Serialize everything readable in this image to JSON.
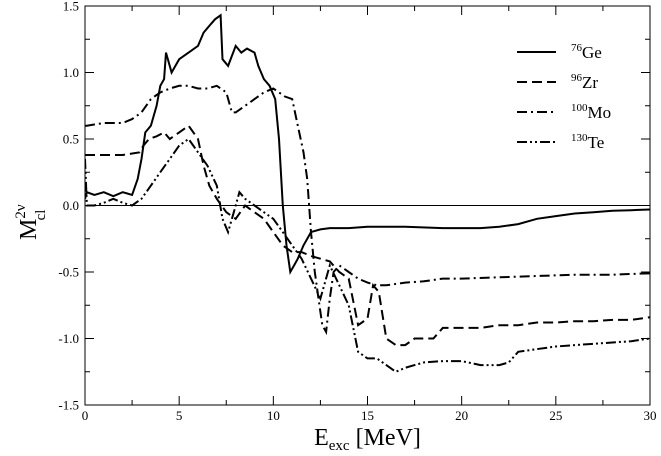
{
  "chart_data": {
    "type": "line",
    "xlabel": "E",
    "xlabel_sub": "exc",
    "xlabel_unit": " [MeV]",
    "ylabel": "M",
    "ylabel_sup": "2ν",
    "ylabel_sub": "cl",
    "xlim": [
      0,
      30
    ],
    "ylim": [
      -1.5,
      1.5
    ],
    "x_ticks": [
      0,
      5,
      10,
      15,
      20,
      25,
      30
    ],
    "y_ticks": [
      -1.5,
      -1.0,
      -0.5,
      0.0,
      0.5,
      1.0,
      1.5
    ],
    "x_tick_labels": [
      "0",
      "5",
      "10",
      "15",
      "20",
      "25",
      "30"
    ],
    "y_tick_labels": [
      "-1.5",
      "-1.0",
      "-0.5",
      "0.0",
      "0.5",
      "1.0",
      "1.5"
    ],
    "zero_line": true,
    "grid": false,
    "legend_position": "top-right",
    "series": [
      {
        "name": "Ge",
        "name_sup": "76",
        "style": "solid",
        "color": "#000000",
        "points": [
          [
            0,
            0.05
          ],
          [
            0.1,
            0.1
          ],
          [
            0.5,
            0.08
          ],
          [
            1.0,
            0.1
          ],
          [
            1.5,
            0.07
          ],
          [
            2.0,
            0.1
          ],
          [
            2.5,
            0.08
          ],
          [
            2.8,
            0.2
          ],
          [
            3.0,
            0.35
          ],
          [
            3.2,
            0.55
          ],
          [
            3.5,
            0.6
          ],
          [
            3.8,
            0.75
          ],
          [
            4.0,
            0.9
          ],
          [
            4.2,
            0.95
          ],
          [
            4.3,
            1.15
          ],
          [
            4.6,
            1.0
          ],
          [
            5.0,
            1.1
          ],
          [
            5.5,
            1.15
          ],
          [
            6.0,
            1.2
          ],
          [
            6.3,
            1.3
          ],
          [
            6.6,
            1.35
          ],
          [
            6.9,
            1.4
          ],
          [
            7.2,
            1.43
          ],
          [
            7.3,
            1.1
          ],
          [
            7.6,
            1.05
          ],
          [
            8.0,
            1.2
          ],
          [
            8.3,
            1.15
          ],
          [
            8.6,
            1.18
          ],
          [
            9.0,
            1.15
          ],
          [
            9.2,
            1.05
          ],
          [
            9.5,
            0.95
          ],
          [
            9.8,
            0.9
          ],
          [
            10.1,
            0.8
          ],
          [
            10.3,
            0.5
          ],
          [
            10.5,
            0.0
          ],
          [
            10.7,
            -0.3
          ],
          [
            10.9,
            -0.5
          ],
          [
            11.1,
            -0.45
          ],
          [
            11.3,
            -0.4
          ],
          [
            11.6,
            -0.3
          ],
          [
            12.0,
            -0.2
          ],
          [
            12.5,
            -0.18
          ],
          [
            13.0,
            -0.17
          ],
          [
            14.0,
            -0.17
          ],
          [
            15.0,
            -0.16
          ],
          [
            17.0,
            -0.16
          ],
          [
            19.0,
            -0.17
          ],
          [
            21.0,
            -0.17
          ],
          [
            22.0,
            -0.16
          ],
          [
            23.0,
            -0.14
          ],
          [
            24.0,
            -0.1
          ],
          [
            25.0,
            -0.08
          ],
          [
            26.0,
            -0.06
          ],
          [
            27.0,
            -0.05
          ],
          [
            28.0,
            -0.04
          ],
          [
            29.0,
            -0.035
          ],
          [
            30.0,
            -0.03
          ]
        ]
      },
      {
        "name": "Zr",
        "name_sup": "96",
        "style": "dashed",
        "color": "#000000",
        "points": [
          [
            0,
            0.38
          ],
          [
            0.1,
            0.38
          ],
          [
            1.0,
            0.38
          ],
          [
            2.0,
            0.38
          ],
          [
            2.9,
            0.4
          ],
          [
            3.1,
            0.45
          ],
          [
            3.4,
            0.5
          ],
          [
            3.8,
            0.52
          ],
          [
            4.2,
            0.55
          ],
          [
            4.5,
            0.5
          ],
          [
            5.0,
            0.55
          ],
          [
            5.5,
            0.6
          ],
          [
            6.0,
            0.5
          ],
          [
            6.3,
            0.3
          ],
          [
            6.6,
            0.15
          ],
          [
            7.0,
            0.05
          ],
          [
            7.5,
            -0.05
          ],
          [
            8.0,
            -0.1
          ],
          [
            8.5,
            0.0
          ],
          [
            9.0,
            -0.05
          ],
          [
            9.5,
            -0.1
          ],
          [
            10.0,
            -0.2
          ],
          [
            10.5,
            -0.3
          ],
          [
            11.0,
            -0.35
          ],
          [
            11.5,
            -0.35
          ],
          [
            12.0,
            -0.38
          ],
          [
            12.5,
            -0.4
          ],
          [
            13.0,
            -0.42
          ],
          [
            13.5,
            -0.5
          ],
          [
            14.0,
            -0.55
          ],
          [
            14.5,
            -0.9
          ],
          [
            15.0,
            -0.85
          ],
          [
            15.3,
            -0.6
          ],
          [
            15.6,
            -0.65
          ],
          [
            16.0,
            -1.0
          ],
          [
            16.5,
            -1.05
          ],
          [
            17.0,
            -1.05
          ],
          [
            17.5,
            -1.0
          ],
          [
            18.0,
            -1.0
          ],
          [
            18.5,
            -1.0
          ],
          [
            19.0,
            -0.92
          ],
          [
            20.0,
            -0.92
          ],
          [
            21.0,
            -0.92
          ],
          [
            22.0,
            -0.9
          ],
          [
            23.0,
            -0.9
          ],
          [
            24.0,
            -0.88
          ],
          [
            25.0,
            -0.88
          ],
          [
            26.0,
            -0.87
          ],
          [
            27.0,
            -0.87
          ],
          [
            28.0,
            -0.86
          ],
          [
            29.0,
            -0.86
          ],
          [
            30.0,
            -0.84
          ]
        ]
      },
      {
        "name": "Mo",
        "name_sup": "100",
        "style": "dashdot",
        "color": "#000000",
        "points": [
          [
            0,
            0.6
          ],
          [
            0.1,
            0.6
          ],
          [
            1.0,
            0.62
          ],
          [
            2.0,
            0.62
          ],
          [
            2.5,
            0.65
          ],
          [
            3.0,
            0.7
          ],
          [
            3.5,
            0.8
          ],
          [
            4.0,
            0.85
          ],
          [
            4.5,
            0.88
          ],
          [
            5.0,
            0.9
          ],
          [
            5.5,
            0.9
          ],
          [
            6.0,
            0.88
          ],
          [
            6.5,
            0.88
          ],
          [
            7.0,
            0.9
          ],
          [
            7.5,
            0.85
          ],
          [
            7.8,
            0.7
          ],
          [
            8.0,
            0.7
          ],
          [
            8.5,
            0.75
          ],
          [
            9.0,
            0.8
          ],
          [
            9.5,
            0.85
          ],
          [
            10.0,
            0.88
          ],
          [
            10.3,
            0.85
          ],
          [
            10.6,
            0.82
          ],
          [
            11.0,
            0.8
          ],
          [
            11.3,
            0.6
          ],
          [
            11.6,
            0.4
          ],
          [
            11.8,
            0.2
          ],
          [
            12.0,
            -0.2
          ],
          [
            12.2,
            -0.5
          ],
          [
            12.4,
            -0.7
          ],
          [
            12.6,
            -0.9
          ],
          [
            12.8,
            -0.95
          ],
          [
            13.0,
            -0.7
          ],
          [
            13.2,
            -0.5
          ],
          [
            13.5,
            -0.45
          ],
          [
            14.0,
            -0.5
          ],
          [
            14.5,
            -0.55
          ],
          [
            15.0,
            -0.58
          ],
          [
            15.5,
            -0.6
          ],
          [
            16.0,
            -0.6
          ],
          [
            17.0,
            -0.58
          ],
          [
            18.0,
            -0.57
          ],
          [
            19.0,
            -0.55
          ],
          [
            20.0,
            -0.55
          ],
          [
            22.0,
            -0.54
          ],
          [
            24.0,
            -0.53
          ],
          [
            26.0,
            -0.52
          ],
          [
            28.0,
            -0.52
          ],
          [
            30.0,
            -0.51
          ]
        ]
      },
      {
        "name": "Te",
        "name_sup": "130",
        "style": "dashdotdot",
        "color": "#000000",
        "points": [
          [
            0,
            0.35
          ],
          [
            0.1,
            0.0
          ],
          [
            0.5,
            0.0
          ],
          [
            1.0,
            0.02
          ],
          [
            1.5,
            0.05
          ],
          [
            2.0,
            0.02
          ],
          [
            2.5,
            0.0
          ],
          [
            3.0,
            0.05
          ],
          [
            3.5,
            0.15
          ],
          [
            4.0,
            0.25
          ],
          [
            4.5,
            0.35
          ],
          [
            5.0,
            0.45
          ],
          [
            5.5,
            0.5
          ],
          [
            6.0,
            0.4
          ],
          [
            6.5,
            0.3
          ],
          [
            7.0,
            0.15
          ],
          [
            7.3,
            -0.1
          ],
          [
            7.6,
            -0.2
          ],
          [
            7.9,
            -0.05
          ],
          [
            8.2,
            0.1
          ],
          [
            8.5,
            0.05
          ],
          [
            9.0,
            0.0
          ],
          [
            9.5,
            -0.05
          ],
          [
            10.0,
            -0.1
          ],
          [
            10.5,
            -0.2
          ],
          [
            11.0,
            -0.3
          ],
          [
            11.5,
            -0.4
          ],
          [
            12.0,
            -0.55
          ],
          [
            12.5,
            -0.7
          ],
          [
            13.0,
            -0.45
          ],
          [
            13.5,
            -0.6
          ],
          [
            14.0,
            -0.75
          ],
          [
            14.5,
            -1.1
          ],
          [
            15.0,
            -1.15
          ],
          [
            15.5,
            -1.15
          ],
          [
            16.0,
            -1.2
          ],
          [
            16.5,
            -1.25
          ],
          [
            17.0,
            -1.22
          ],
          [
            17.5,
            -1.2
          ],
          [
            18.0,
            -1.18
          ],
          [
            19.0,
            -1.17
          ],
          [
            20.0,
            -1.17
          ],
          [
            21.0,
            -1.2
          ],
          [
            22.0,
            -1.2
          ],
          [
            22.5,
            -1.18
          ],
          [
            23.0,
            -1.1
          ],
          [
            24.0,
            -1.08
          ],
          [
            25.0,
            -1.06
          ],
          [
            26.0,
            -1.05
          ],
          [
            27.0,
            -1.04
          ],
          [
            28.0,
            -1.03
          ],
          [
            29.0,
            -1.02
          ],
          [
            30.0,
            -1.0
          ]
        ]
      }
    ]
  }
}
